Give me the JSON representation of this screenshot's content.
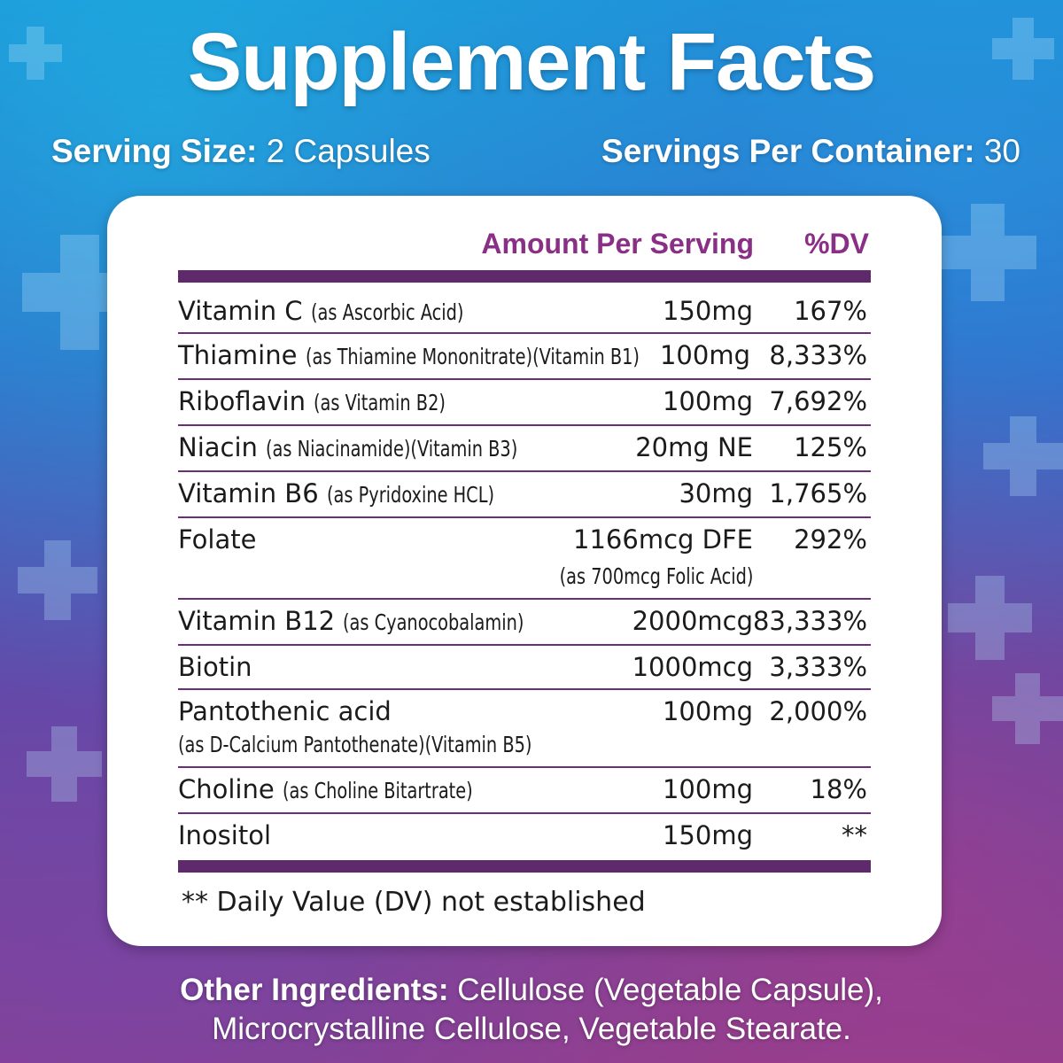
{
  "title": "Supplement Facts",
  "serving_size": {
    "label": "Serving Size:",
    "value": "2 Capsules"
  },
  "servings_per_container": {
    "label": "Servings Per Container:",
    "value": "30"
  },
  "table": {
    "header_amount": "Amount Per Serving",
    "header_dv": "%DV",
    "rows": [
      {
        "name": "Vitamin C",
        "source": "(as Ascorbic Acid)",
        "amount": "150mg",
        "dv": "167%"
      },
      {
        "name": "Thiamine",
        "source": "(as Thiamine Mononitrate)(Vitamin B1)",
        "amount": "100mg",
        "dv": "8,333%"
      },
      {
        "name": "Riboflavin",
        "source": "(as Vitamin B2)",
        "amount": "100mg",
        "dv": "7,692%"
      },
      {
        "name": "Niacin",
        "source": "(as Niacinamide)(Vitamin B3)",
        "amount": "20mg NE",
        "dv": "125%"
      },
      {
        "name": "Vitamin B6",
        "source": "(as Pyridoxine HCL)",
        "amount": "30mg",
        "dv": "1,765%"
      },
      {
        "name": "Folate",
        "source": "",
        "amount": "1166mcg DFE",
        "amount_note": "(as 700mcg Folic Acid)",
        "dv": "292%"
      },
      {
        "name": "Vitamin B12",
        "source": "(as Cyanocobalamin)",
        "amount": "2000mcg",
        "dv": "83,333%"
      },
      {
        "name": "Biotin",
        "source": "",
        "amount": "1000mcg",
        "dv": "3,333%"
      },
      {
        "name": "Pantothenic acid",
        "source": "",
        "source_line2": "(as D-Calcium Pantothenate)(Vitamin B5)",
        "amount": "100mg",
        "dv": "2,000%"
      },
      {
        "name": "Choline",
        "source": "(as Choline Bitartrate)",
        "amount": "100mg",
        "dv": "18%"
      },
      {
        "name": "Inositol",
        "source": "",
        "amount": "150mg",
        "dv": "**"
      }
    ],
    "footnote": "** Daily Value (DV) not established"
  },
  "other_ingredients": {
    "label": "Other Ingredients:",
    "line1": "Cellulose (Vegetable Capsule),",
    "line2": "Microcrystalline Cellulose, Vegetable Stearate."
  },
  "colors": {
    "accent": "#8a2f86",
    "bar": "#5e2a6c"
  }
}
